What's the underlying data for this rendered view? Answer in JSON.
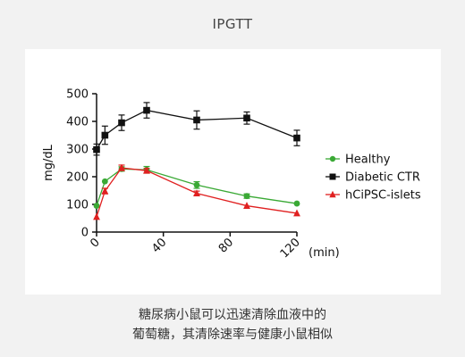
{
  "page": {
    "title": "IPGTT",
    "caption_lines": [
      "糖尿病小鼠可以迅速清除血液中的",
      "葡萄糖，其清除速率与健康小鼠相似"
    ]
  },
  "chart_data": {
    "type": "line",
    "title": "IPGTT",
    "xlabel": "(min)",
    "ylabel": "mg/dL",
    "xlim": [
      0,
      120
    ],
    "ylim": [
      0,
      500
    ],
    "xticks": [
      0,
      40,
      80,
      120
    ],
    "yticks": [
      0,
      100,
      200,
      300,
      400,
      500
    ],
    "grid": false,
    "legend_position": "right",
    "series": [
      {
        "name": "Healthy",
        "color": "#3aa935",
        "marker": "circle",
        "x": [
          0,
          5,
          15,
          30,
          60,
          90,
          120
        ],
        "y": [
          95,
          183,
          228,
          225,
          170,
          130,
          103
        ],
        "err": [
          0,
          0,
          8,
          12,
          12,
          8,
          0
        ]
      },
      {
        "name": "Diabetic CTR",
        "color": "#111111",
        "marker": "square",
        "x": [
          0,
          5,
          15,
          30,
          60,
          90,
          120
        ],
        "y": [
          298,
          350,
          395,
          440,
          405,
          412,
          340
        ],
        "err": [
          20,
          33,
          28,
          28,
          33,
          22,
          28
        ]
      },
      {
        "name": "hCiPSC-islets",
        "color": "#e02020",
        "marker": "triangle",
        "x": [
          0,
          5,
          15,
          30,
          60,
          90,
          120
        ],
        "y": [
          55,
          148,
          232,
          222,
          140,
          95,
          68
        ],
        "err": [
          0,
          10,
          10,
          8,
          8,
          0,
          0
        ]
      }
    ]
  }
}
